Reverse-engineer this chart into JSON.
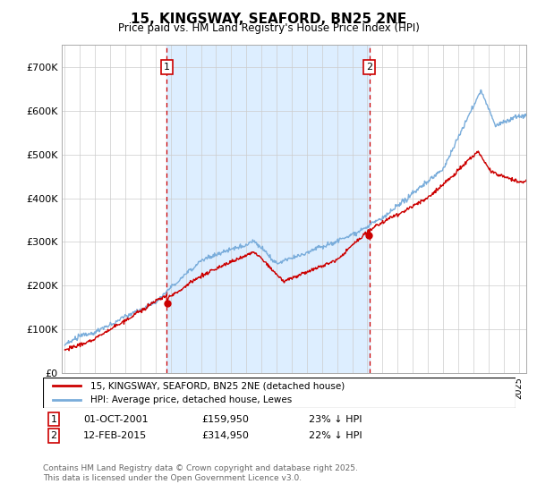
{
  "title": "15, KINGSWAY, SEAFORD, BN25 2NE",
  "subtitle": "Price paid vs. HM Land Registry's House Price Index (HPI)",
  "ylim": [
    0,
    750000
  ],
  "yticks": [
    0,
    100000,
    200000,
    300000,
    400000,
    500000,
    600000,
    700000
  ],
  "ytick_labels": [
    "£0",
    "£100K",
    "£200K",
    "£300K",
    "£400K",
    "£500K",
    "£600K",
    "£700K"
  ],
  "xlim_left": 1994.8,
  "xlim_right": 2025.5,
  "sale1_date": 2001.75,
  "sale1_price": 159950,
  "sale2_date": 2015.12,
  "sale2_price": 314950,
  "line_red_color": "#cc0000",
  "line_blue_color": "#7aaddb",
  "vline_color": "#cc0000",
  "shade_color": "#ddeeff",
  "legend_line1": "15, KINGSWAY, SEAFORD, BN25 2NE (detached house)",
  "legend_line2": "HPI: Average price, detached house, Lewes",
  "footer": "Contains HM Land Registry data © Crown copyright and database right 2025.\nThis data is licensed under the Open Government Licence v3.0.",
  "background_color": "#ffffff",
  "grid_color": "#cccccc"
}
